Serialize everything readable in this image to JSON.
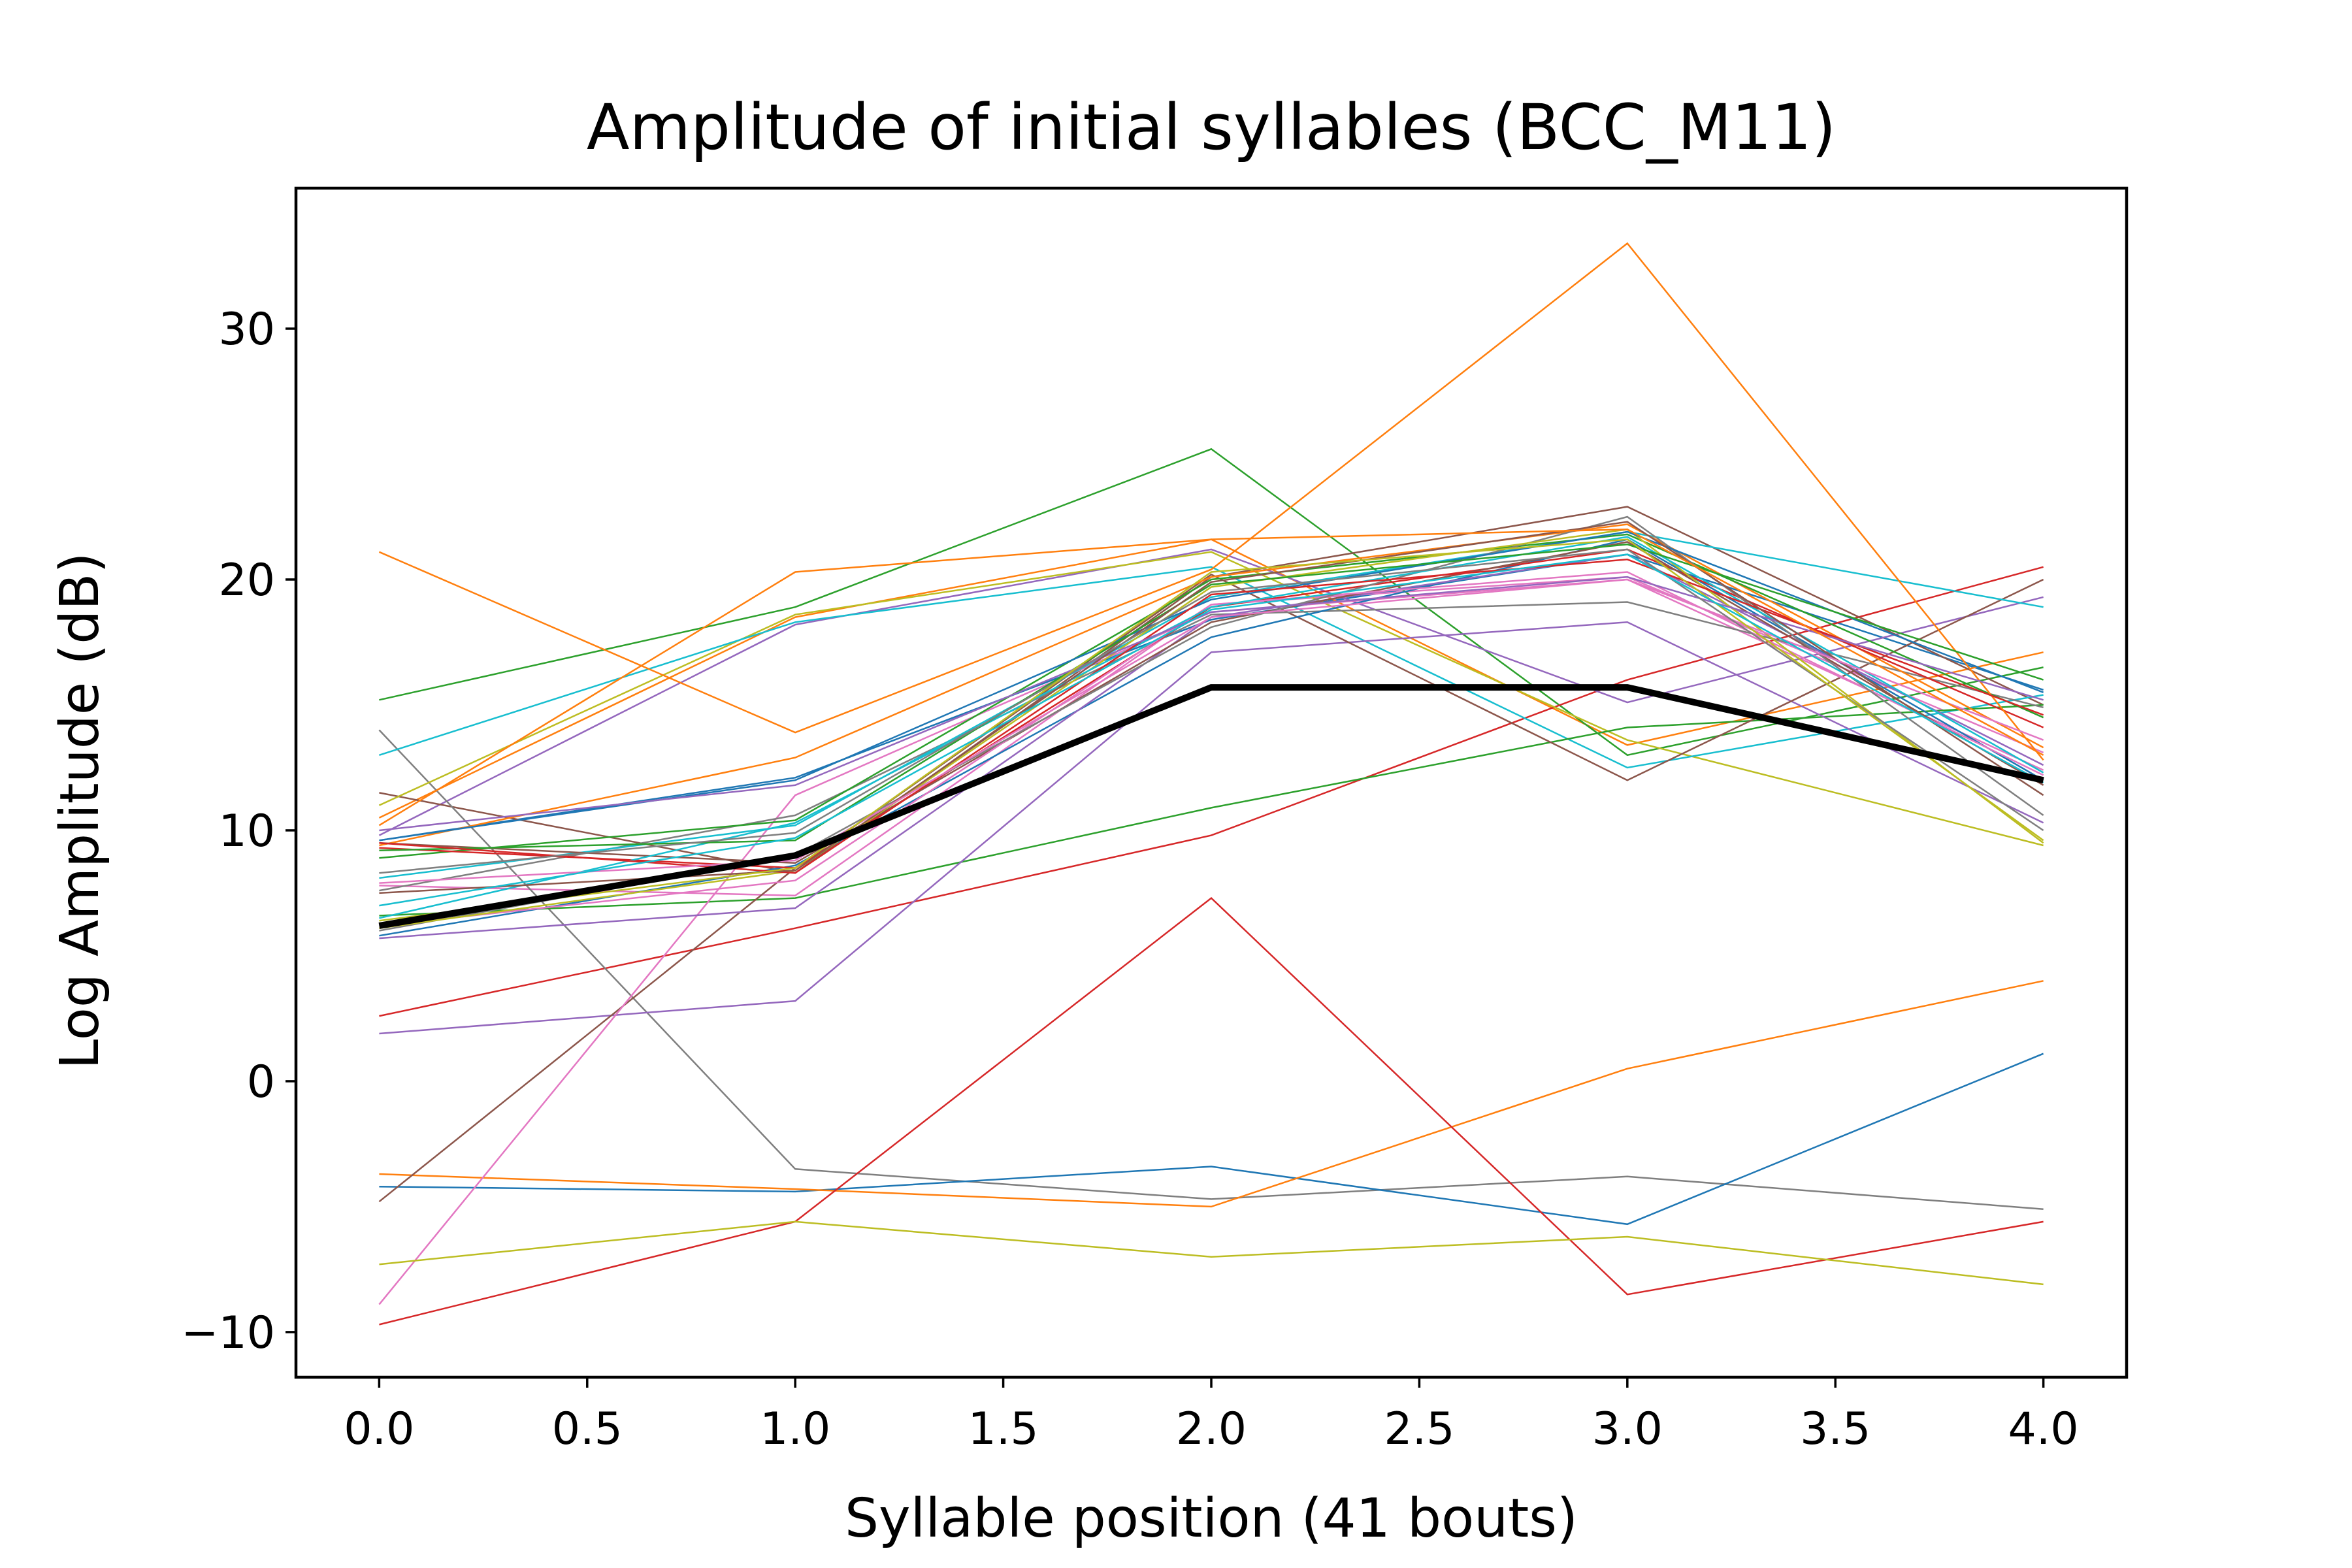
{
  "chart_data": {
    "type": "line",
    "title": "Amplitude of initial syllables (BCC_M11)",
    "xlabel": "Syllable position (41 bouts)",
    "ylabel": "Log Amplitude (dB)",
    "xlim": [
      -0.2,
      4.2
    ],
    "ylim": [
      -11.8,
      35.6
    ],
    "x": [
      0,
      1,
      2,
      3,
      4
    ],
    "xticks": [
      "0.0",
      "0.5",
      "1.0",
      "1.5",
      "2.0",
      "2.5",
      "3.0",
      "3.5",
      "4.0"
    ],
    "xtick_values": [
      0,
      0.5,
      1,
      1.5,
      2,
      2.5,
      3,
      3.5,
      4
    ],
    "yticks": [
      "−10",
      "0",
      "10",
      "20",
      "30"
    ],
    "ytick_values": [
      -10,
      0,
      10,
      20,
      30
    ],
    "grid": false,
    "legend": "none",
    "series": [
      {
        "color": "#1f77b4",
        "values": [
          9.6,
          12.1,
          18.4,
          21.0,
          15.6
        ]
      },
      {
        "color": "#ff7f0e",
        "values": [
          10.5,
          18.5,
          21.6,
          13.4,
          17.1
        ]
      },
      {
        "color": "#2ca02c",
        "values": [
          15.2,
          18.9,
          25.2,
          13.0,
          16.5
        ]
      },
      {
        "color": "#d62728",
        "values": [
          2.6,
          6.1,
          9.8,
          16.0,
          20.5
        ]
      },
      {
        "color": "#9467bd",
        "values": [
          9.8,
          18.2,
          21.2,
          15.1,
          19.3
        ]
      },
      {
        "color": "#8c564b",
        "values": [
          11.5,
          8.3,
          20.1,
          22.9,
          15.0
        ]
      },
      {
        "color": "#e377c2",
        "values": [
          7.8,
          7.4,
          19.0,
          20.1,
          13.1
        ]
      },
      {
        "color": "#7f7f7f",
        "values": [
          14.0,
          -3.5,
          -4.7,
          -3.8,
          -5.1
        ]
      },
      {
        "color": "#bcbd22",
        "values": [
          11.0,
          18.6,
          21.1,
          13.6,
          9.4
        ]
      },
      {
        "color": "#17becf",
        "values": [
          13.0,
          18.3,
          20.5,
          12.5,
          15.4
        ]
      },
      {
        "color": "#1f77b4",
        "values": [
          -4.2,
          -4.4,
          -3.4,
          -5.7,
          1.1
        ]
      },
      {
        "color": "#ff7f0e",
        "values": [
          -3.7,
          -4.3,
          -5.0,
          0.5,
          4.0
        ]
      },
      {
        "color": "#2ca02c",
        "values": [
          6.6,
          7.3,
          10.9,
          14.1,
          15.0
        ]
      },
      {
        "color": "#d62728",
        "values": [
          -9.7,
          -5.6,
          7.3,
          -8.5,
          -5.6
        ]
      },
      {
        "color": "#9467bd",
        "values": [
          1.9,
          3.2,
          17.1,
          18.3,
          10.3
        ]
      },
      {
        "color": "#8c564b",
        "values": [
          -4.8,
          8.5,
          20.2,
          12.0,
          20.0
        ]
      },
      {
        "color": "#e377c2",
        "values": [
          -8.9,
          11.4,
          18.7,
          20.0,
          12.4
        ]
      },
      {
        "color": "#7f7f7f",
        "values": [
          7.6,
          10.6,
          18.6,
          19.1,
          14.9
        ]
      },
      {
        "color": "#bcbd22",
        "values": [
          -7.3,
          -5.6,
          -7.0,
          -6.2,
          -8.1
        ]
      },
      {
        "color": "#17becf",
        "values": [
          8.1,
          10.2,
          19.3,
          21.9,
          18.9
        ]
      },
      {
        "color": "#1f77b4",
        "values": [
          5.8,
          8.6,
          17.7,
          21.6,
          12.0
        ]
      },
      {
        "color": "#ff7f0e",
        "values": [
          9.4,
          12.9,
          20.1,
          22.2,
          13.3
        ]
      },
      {
        "color": "#2ca02c",
        "values": [
          8.9,
          10.4,
          20.0,
          21.8,
          14.5
        ]
      },
      {
        "color": "#d62728",
        "values": [
          9.3,
          8.5,
          18.9,
          21.2,
          14.1
        ]
      },
      {
        "color": "#9467bd",
        "values": [
          5.7,
          6.9,
          18.5,
          21.0,
          12.6
        ]
      },
      {
        "color": "#8c564b",
        "values": [
          9.5,
          8.7,
          18.3,
          21.5,
          11.8
        ]
      },
      {
        "color": "#e377c2",
        "values": [
          6.2,
          8.0,
          19.0,
          20.3,
          12.2
        ]
      },
      {
        "color": "#7f7f7f",
        "values": [
          6.0,
          9.0,
          18.1,
          22.5,
          10.6
        ]
      },
      {
        "color": "#bcbd22",
        "values": [
          6.1,
          8.4,
          19.7,
          22.0,
          9.5
        ]
      },
      {
        "color": "#17becf",
        "values": [
          6.5,
          10.3,
          18.9,
          21.7,
          12.3
        ]
      },
      {
        "color": "#1f77b4",
        "values": [
          9.6,
          12.0,
          19.2,
          21.9,
          15.5
        ]
      },
      {
        "color": "#ff7f0e",
        "values": [
          21.1,
          13.9,
          20.4,
          33.4,
          12.8
        ]
      },
      {
        "color": "#2ca02c",
        "values": [
          9.2,
          9.6,
          19.8,
          21.4,
          16.0
        ]
      },
      {
        "color": "#d62728",
        "values": [
          9.5,
          8.3,
          19.4,
          20.8,
          14.6
        ]
      },
      {
        "color": "#9467bd",
        "values": [
          10.0,
          11.8,
          18.7,
          20.1,
          15.2
        ]
      },
      {
        "color": "#8c564b",
        "values": [
          7.5,
          8.4,
          19.9,
          22.3,
          11.4
        ]
      },
      {
        "color": "#e377c2",
        "values": [
          7.9,
          8.8,
          18.5,
          20.0,
          13.6
        ]
      },
      {
        "color": "#7f7f7f",
        "values": [
          8.3,
          9.9,
          19.5,
          21.2,
          10.0
        ]
      },
      {
        "color": "#bcbd22",
        "values": [
          6.4,
          8.5,
          20.3,
          21.6,
          9.6
        ]
      },
      {
        "color": "#17becf",
        "values": [
          7.0,
          9.7,
          18.8,
          21.0,
          11.9
        ]
      },
      {
        "color": "#ff7f0e",
        "values": [
          10.2,
          20.3,
          21.6,
          22.0,
          13.0
        ]
      },
      {
        "color": "#000000",
        "values": [
          6.2,
          9.0,
          15.7,
          15.7,
          12.0
        ],
        "bold": true
      }
    ]
  }
}
